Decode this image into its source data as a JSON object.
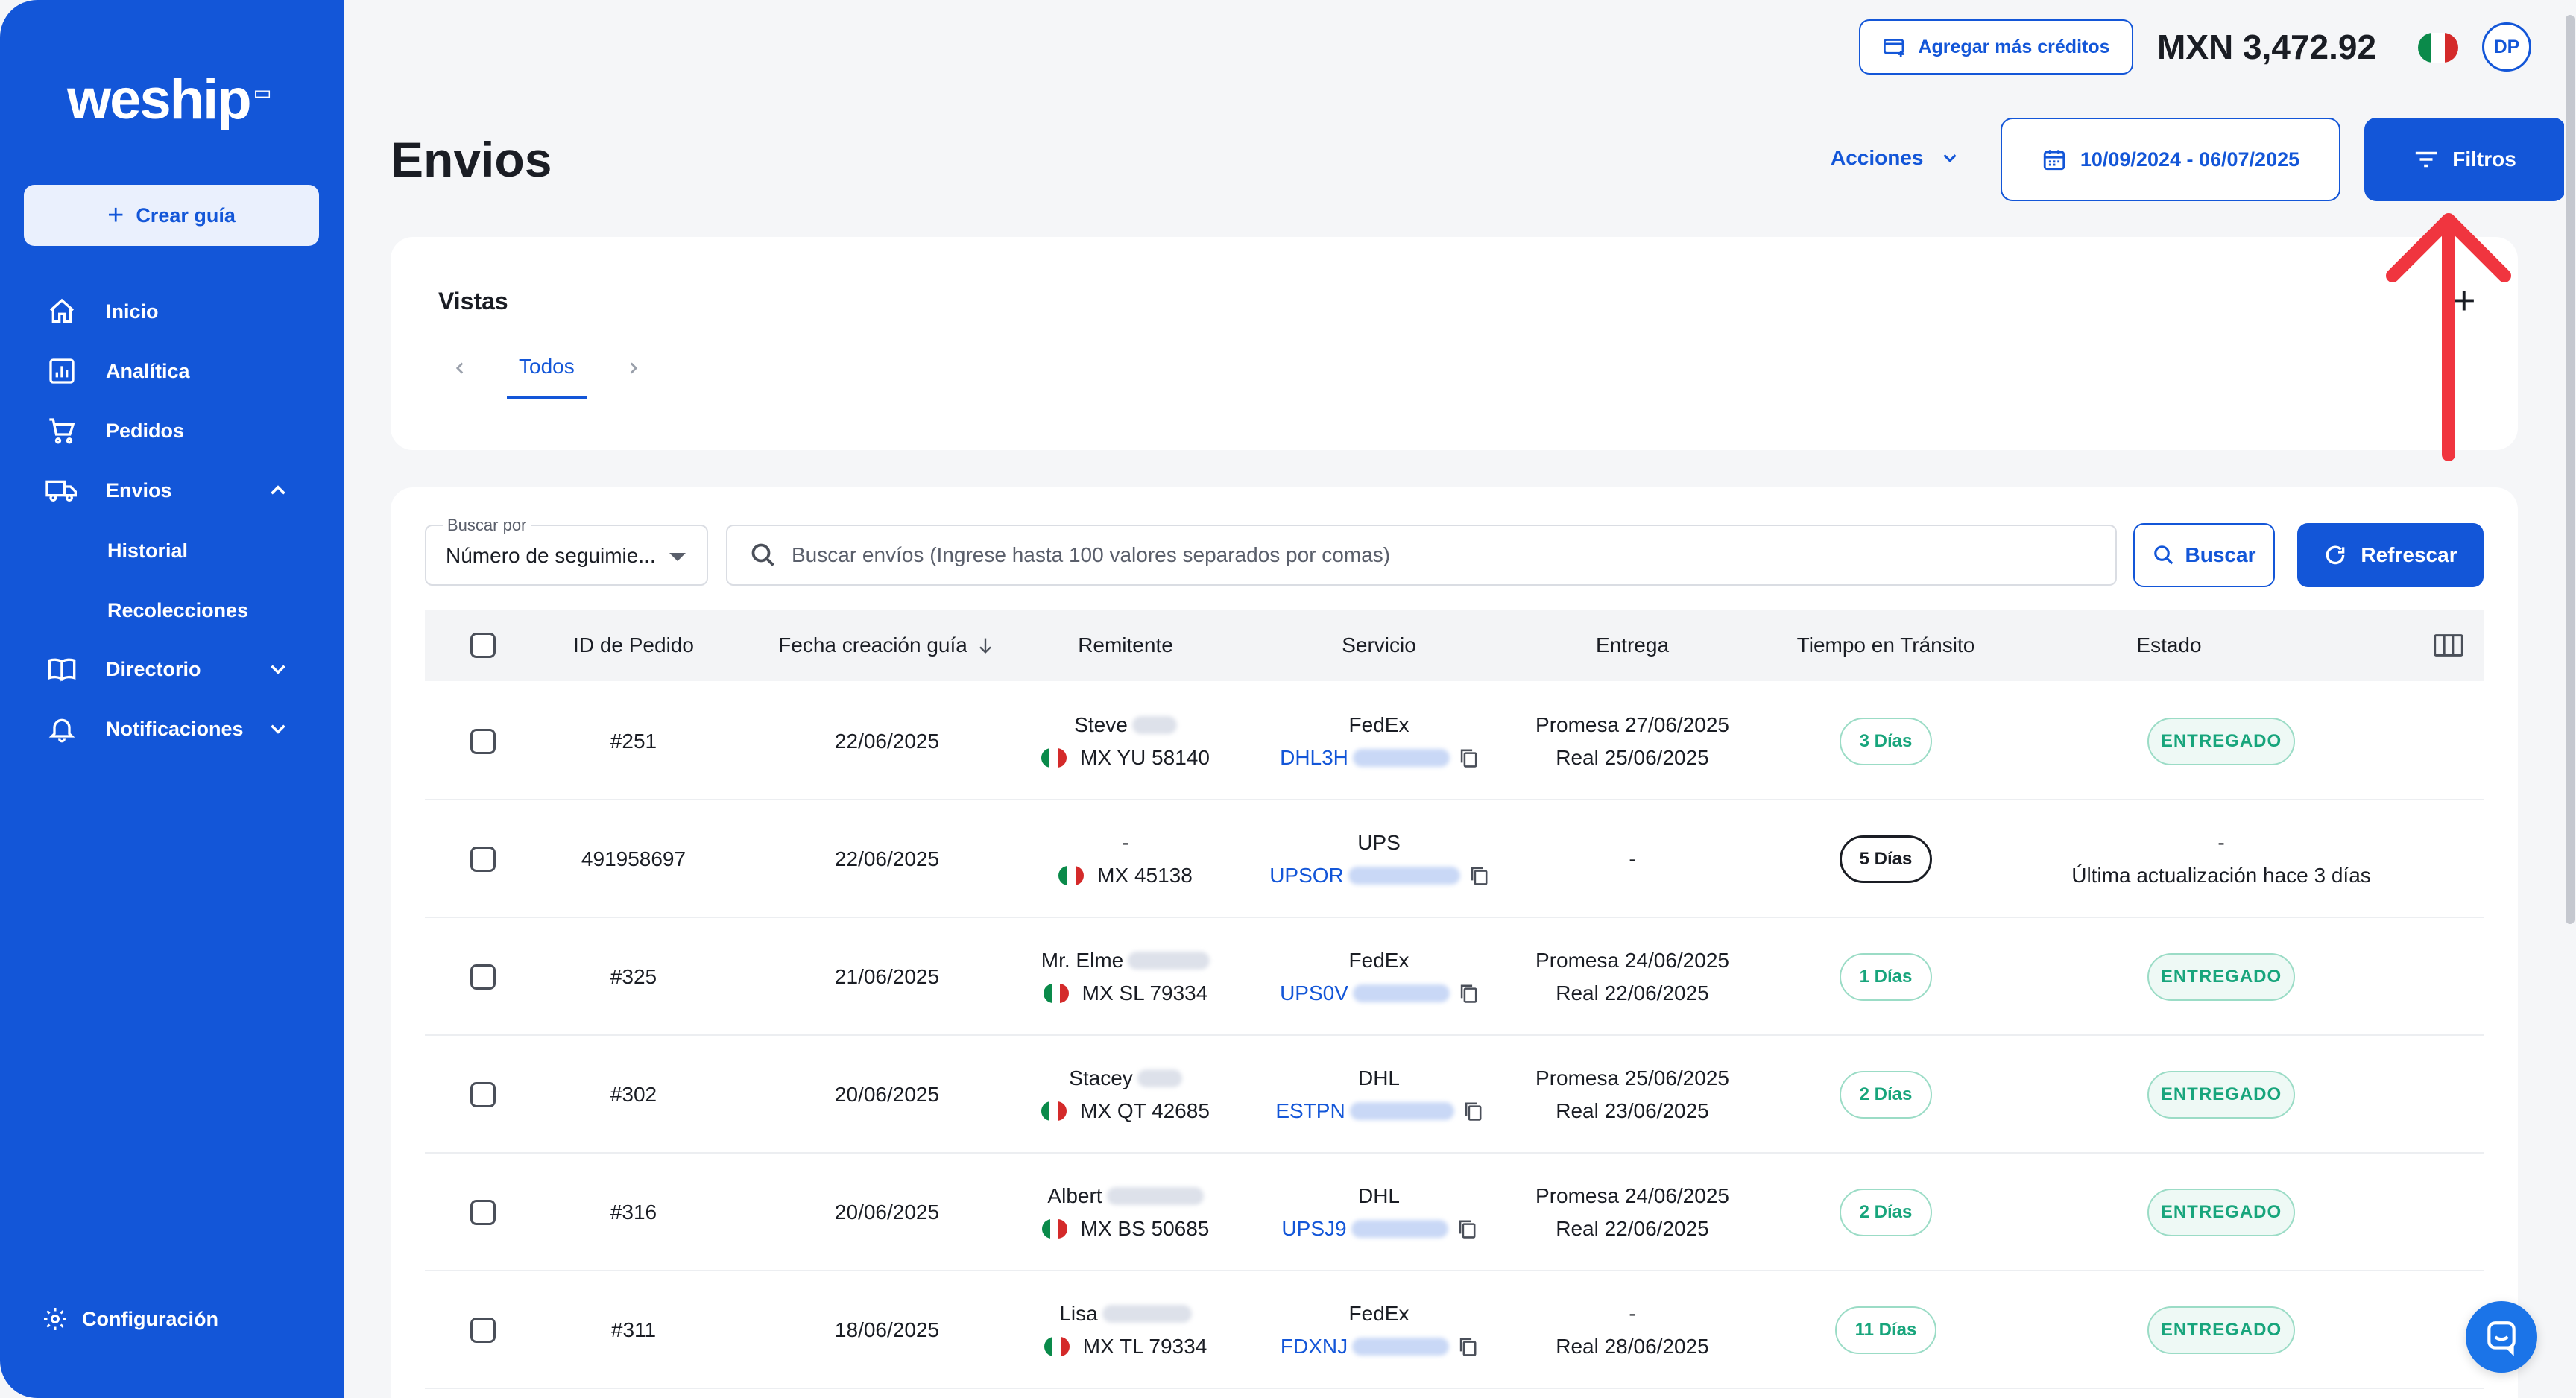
{
  "sidebar": {
    "logo": "weship",
    "create_button": "Crear guía",
    "nav": [
      {
        "label": "Inicio"
      },
      {
        "label": "Analítica"
      },
      {
        "label": "Pedidos"
      },
      {
        "label": "Envios"
      },
      {
        "label": "Historial"
      },
      {
        "label": "Recolecciones"
      },
      {
        "label": "Directorio"
      },
      {
        "label": "Notificaciones"
      }
    ],
    "config": "Configuración"
  },
  "topbar": {
    "credits_button": "Agregar más créditos",
    "balance": "MXN 3,472.92",
    "avatar_initials": "DP"
  },
  "header": {
    "title": "Envios",
    "acciones": "Acciones",
    "date_range": "10/09/2024 - 06/07/2025",
    "filters": "Filtros"
  },
  "vistas": {
    "title": "Vistas",
    "active_tab": "Todos",
    "add_icon": "+"
  },
  "search": {
    "by_label": "Buscar por",
    "by_value": "Número de seguimie...",
    "placeholder": "Buscar envíos (Ingrese hasta 100 valores separados por comas)",
    "search_button": "Buscar",
    "refresh_button": "Refrescar"
  },
  "table": {
    "headers": [
      "ID de Pedido",
      "Fecha creación guía",
      "Remitente",
      "Servicio",
      "Entrega",
      "Tiempo en Tránsito",
      "Estado"
    ],
    "rows": [
      {
        "id": "#251",
        "fecha": "22/06/2025",
        "rem_name": "Steve",
        "rem_loc": "MX YU 58140",
        "carrier": "FedEx",
        "tracking": "DHL3H",
        "entrega1": "Promesa 27/06/2025",
        "entrega2": "Real 25/06/2025",
        "transit": "3 Días",
        "estado": "ENTREGADO"
      },
      {
        "id": "491958697",
        "fecha": "22/06/2025",
        "rem_name": "-",
        "rem_loc": "MX 45138",
        "carrier": "UPS",
        "tracking": "UPSOR",
        "entrega1": "-",
        "entrega2": "",
        "transit": "5 Días",
        "estado1": "-",
        "estado2": "Última actualización hace 3 días"
      },
      {
        "id": "#325",
        "fecha": "21/06/2025",
        "rem_name": "Mr. Elme",
        "rem_loc": "MX SL 79334",
        "carrier": "FedEx",
        "tracking": "UPS0V",
        "entrega1": "Promesa 24/06/2025",
        "entrega2": "Real 22/06/2025",
        "transit": "1 Días",
        "estado": "ENTREGADO"
      },
      {
        "id": "#302",
        "fecha": "20/06/2025",
        "rem_name": "Stacey",
        "rem_loc": "MX QT 42685",
        "carrier": "DHL",
        "tracking": "ESTPN",
        "entrega1": "Promesa 25/06/2025",
        "entrega2": "Real 23/06/2025",
        "transit": "2 Días",
        "estado": "ENTREGADO"
      },
      {
        "id": "#316",
        "fecha": "20/06/2025",
        "rem_name": "Albert",
        "rem_loc": "MX BS 50685",
        "carrier": "DHL",
        "tracking": "UPSJ9",
        "entrega1": "Promesa 24/06/2025",
        "entrega2": "Real 22/06/2025",
        "transit": "2 Días",
        "estado": "ENTREGADO"
      },
      {
        "id": "#311",
        "fecha": "18/06/2025",
        "rem_name": "Lisa",
        "rem_loc": "MX TL 79334",
        "carrier": "FedEx",
        "tracking": "FDXNJ",
        "entrega1": "-",
        "entrega2": "Real 28/06/2025",
        "transit": "11 Días",
        "estado": "ENTREGADO"
      }
    ]
  },
  "colors": {
    "primary": "#1356d8",
    "success": "#18a57c",
    "annotation": "#f0353f"
  }
}
